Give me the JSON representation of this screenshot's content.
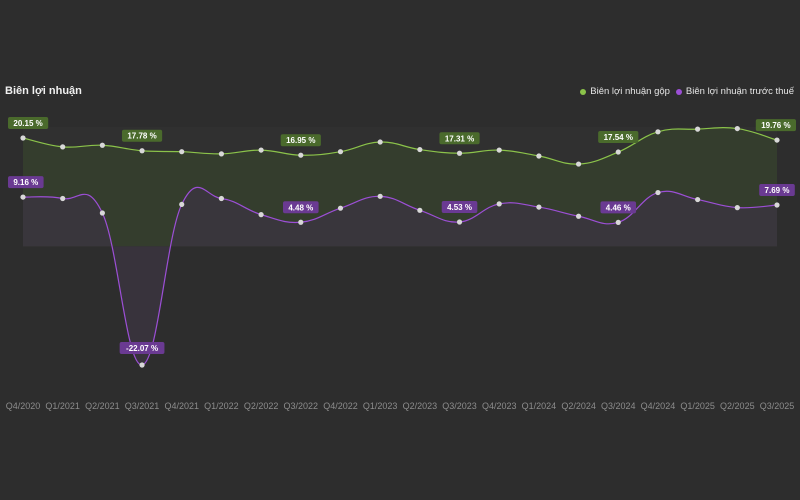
{
  "colors": {
    "background": "#2d2d2d",
    "gross": "#8bc34a",
    "pretax": "#9c4fd6",
    "gross_label_bg": "#4a6a2c",
    "pretax_label_bg": "#6a3a92",
    "point": "#d8d8d8"
  },
  "chart_data": {
    "type": "line",
    "title": "Biên lợi nhuận",
    "legend_position": "top-right",
    "grid": false,
    "x": [
      "Q4/2020",
      "Q1/2021",
      "Q2/2021",
      "Q3/2021",
      "Q4/2021",
      "Q1/2022",
      "Q2/2022",
      "Q3/2022",
      "Q4/2022",
      "Q1/2023",
      "Q2/2023",
      "Q3/2023",
      "Q4/2023",
      "Q1/2024",
      "Q2/2024",
      "Q3/2024",
      "Q4/2024",
      "Q1/2025",
      "Q2/2025",
      "Q3/2025"
    ],
    "ylim": [
      -22.07,
      20.15
    ],
    "series": [
      {
        "name": "Biên lợi nhuận gộp",
        "values": [
          20.15,
          18.5,
          18.8,
          17.78,
          17.6,
          17.2,
          17.9,
          16.95,
          17.6,
          19.4,
          18.0,
          17.31,
          17.9,
          16.8,
          15.3,
          17.54,
          21.3,
          21.8,
          21.9,
          19.76
        ],
        "labels": {
          "0": "20.15 %",
          "3": "17.78 %",
          "7": "16.95 %",
          "11": "17.31 %",
          "15": "17.54 %",
          "19": "19.76 %"
        }
      },
      {
        "name": "Biên lợi nhuận trước thuế",
        "values": [
          9.16,
          8.9,
          6.2,
          -22.07,
          7.8,
          8.9,
          5.9,
          4.48,
          7.1,
          9.3,
          6.7,
          4.53,
          7.9,
          7.3,
          5.6,
          4.46,
          10.0,
          8.7,
          7.2,
          7.69
        ],
        "labels": {
          "0": "9.16 %",
          "3": "-22.07 %",
          "7": "4.48 %",
          "11": "4.53 %",
          "15": "4.46 %",
          "19": "7.69 %"
        }
      }
    ]
  }
}
